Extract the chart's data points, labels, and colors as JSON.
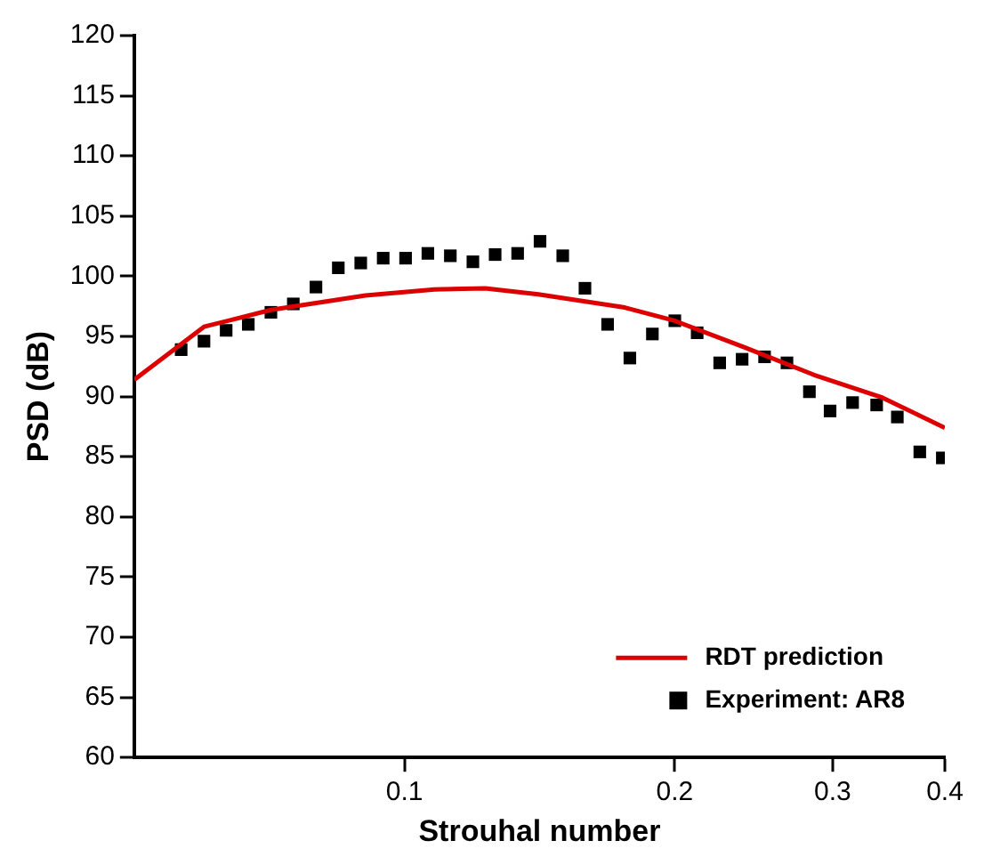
{
  "chart_data": {
    "type": "scatter",
    "xlabel": "Strouhal number",
    "ylabel": "PSD (dB)",
    "log": "x",
    "xlim": [
      0.05,
      0.4
    ],
    "xticks": [
      0.1,
      0.2,
      0.3,
      0.4
    ],
    "ylim": [
      60,
      120
    ],
    "yticks": [
      60,
      65,
      70,
      75,
      80,
      85,
      90,
      95,
      100,
      105,
      110,
      115,
      120
    ],
    "grid": false,
    "legend": "bottom right",
    "marker": "square",
    "series": [
      {
        "name": "RDT prediction",
        "type": "line",
        "color": "#dd0000",
        "marker": "none",
        "line_style": "solid",
        "x": [
          0.05,
          0.0598,
          0.071,
          0.0905,
          0.108,
          0.123,
          0.141,
          0.176,
          0.2,
          0.239,
          0.286,
          0.341,
          0.4
        ],
        "values": [
          91.4,
          95.8,
          97.2,
          98.4,
          98.9,
          99.0,
          98.5,
          97.4,
          96.3,
          94.1,
          91.8,
          89.9,
          87.4
        ]
      },
      {
        "name": "Experiment: AR8",
        "color": "#000000",
        "x": [
          0.0564,
          0.0598,
          0.0633,
          0.067,
          0.071,
          0.0752,
          0.0797,
          0.0844,
          0.0894,
          0.0947,
          0.1003,
          0.1062,
          0.1125,
          0.1192,
          0.1262,
          0.1337,
          0.1416,
          0.1501,
          0.1589,
          0.1684,
          0.1783,
          0.1889,
          0.2001,
          0.2119,
          0.2245,
          0.2378,
          0.2519,
          0.2668,
          0.2826,
          0.298,
          0.3157,
          0.3358,
          0.3541,
          0.3751,
          0.3974
        ],
        "values": [
          93.9,
          94.6,
          95.5,
          96.0,
          97.0,
          97.7,
          99.1,
          100.7,
          101.1,
          101.5,
          101.5,
          101.9,
          101.7,
          101.2,
          101.8,
          101.9,
          102.9,
          101.7,
          99.0,
          96.0,
          93.2,
          95.2,
          96.3,
          95.3,
          92.8,
          93.1,
          93.3,
          92.8,
          90.4,
          88.8,
          89.5,
          89.3,
          88.3,
          85.4,
          84.9
        ]
      }
    ]
  }
}
